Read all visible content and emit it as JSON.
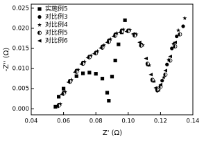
{
  "chart_data": {
    "type": "scatter",
    "x_label": "Z' (Ω)",
    "y_label": "-Z'' (Ω)",
    "xlim": [
      0.04,
      0.14
    ],
    "ylim": [
      -0.0015,
      0.026
    ],
    "xticks": [
      0.04,
      0.06,
      0.08,
      {
        "value": 0.1,
        "label": "0.10"
      },
      0.12,
      0.14
    ],
    "yticks": [
      {
        "value": 0,
        "label": "0.000"
      },
      0.005,
      {
        "value": 0.01,
        "label": "0.010"
      },
      0.015,
      {
        "value": 0.02,
        "label": "0.020"
      },
      0.025
    ],
    "legend": "upper-left",
    "series": [
      {
        "name": "实施例5",
        "color": "#000000",
        "marker": "square",
        "x": [
          0.055,
          0.057,
          0.06,
          0.064,
          0.068,
          0.072,
          0.076,
          0.08,
          0.084,
          0.087,
          0.088,
          0.09,
          0.092,
          0.094,
          0.096,
          0.098
        ],
        "values": [
          0.0005,
          0.003,
          0.005,
          0.0068,
          0.0081,
          0.0088,
          0.009,
          0.0087,
          0.0075,
          0.004,
          0.002,
          0.008,
          0.012,
          0.016,
          0.019,
          0.022
        ]
      },
      {
        "name": "对比例3",
        "color": "#000000",
        "marker": "circle",
        "x": [
          0.057,
          0.06,
          0.064,
          0.068,
          0.072,
          0.076,
          0.08,
          0.084,
          0.088,
          0.092,
          0.096,
          0.1,
          0.104,
          0.108,
          0.112,
          0.115,
          0.118,
          0.121,
          0.124,
          0.127,
          0.13,
          0.134
        ],
        "values": [
          0.001,
          0.004,
          0.007,
          0.0095,
          0.0115,
          0.013,
          0.014,
          0.0155,
          0.017,
          0.0185,
          0.0195,
          0.0195,
          0.0185,
          0.016,
          0.011,
          0.007,
          0.0045,
          0.007,
          0.011,
          0.015,
          0.018,
          0.0205
        ]
      },
      {
        "name": "对比例4",
        "color": "#000000",
        "marker": "star",
        "x": [
          0.058,
          0.061,
          0.065,
          0.069,
          0.073,
          0.077,
          0.081,
          0.085,
          0.089,
          0.093,
          0.097,
          0.101,
          0.105,
          0.109,
          0.113,
          0.116,
          0.119,
          0.122,
          0.125,
          0.128,
          0.131,
          0.135
        ],
        "values": [
          0.0012,
          0.0042,
          0.0072,
          0.0097,
          0.0117,
          0.0132,
          0.0143,
          0.0158,
          0.0173,
          0.0188,
          0.0197,
          0.0196,
          0.0185,
          0.0158,
          0.0108,
          0.0068,
          0.0046,
          0.0078,
          0.0122,
          0.0162,
          0.0195,
          0.0225
        ]
      },
      {
        "name": "对比例5",
        "color": "#000000",
        "marker": "half",
        "x": [
          0.057,
          0.06,
          0.064,
          0.068,
          0.072,
          0.076,
          0.08,
          0.084,
          0.088,
          0.092,
          0.096,
          0.1,
          0.104,
          0.108,
          0.112,
          0.115,
          0.118,
          0.12,
          0.123,
          0.126,
          0.129,
          0.132
        ],
        "values": [
          0.0008,
          0.0038,
          0.0068,
          0.0092,
          0.0112,
          0.0128,
          0.0138,
          0.0152,
          0.0167,
          0.0182,
          0.0192,
          0.0193,
          0.0182,
          0.0157,
          0.0112,
          0.0072,
          0.0048,
          0.0055,
          0.0085,
          0.012,
          0.0155,
          0.0185
        ]
      },
      {
        "name": "对比例6",
        "color": "#000000",
        "marker": "triangle",
        "x": [
          0.056,
          0.059,
          0.063,
          0.067,
          0.071,
          0.075,
          0.079,
          0.083,
          0.087,
          0.091,
          0.095,
          0.099,
          0.103,
          0.107,
          0.111,
          0.114,
          0.117,
          0.12,
          0.123,
          0.126,
          0.129
        ],
        "values": [
          0.0006,
          0.0036,
          0.0066,
          0.0091,
          0.0111,
          0.0127,
          0.0137,
          0.0151,
          0.0165,
          0.018,
          0.019,
          0.0192,
          0.0186,
          0.0165,
          0.0125,
          0.0085,
          0.0052,
          0.006,
          0.0095,
          0.013,
          0.0165
        ]
      }
    ]
  }
}
